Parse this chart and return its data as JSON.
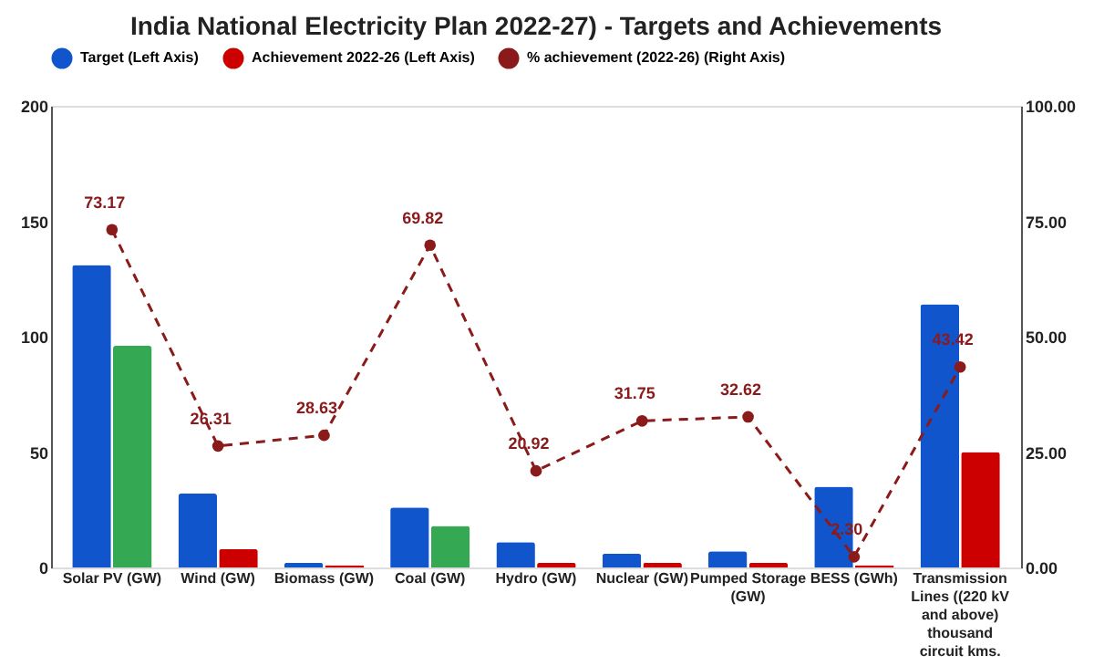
{
  "chart_data": {
    "type": "bar",
    "title": "India National Electricity Plan 2022-27) - Targets and Achievements",
    "categories": [
      "Solar PV (GW)",
      "Wind (GW)",
      "Biomass (GW)",
      "Coal (GW)",
      "Hydro (GW)",
      "Nuclear (GW)",
      "Pumped Storage (GW)",
      "BESS (GWh)",
      "Transmission Lines ((220 kV and above) thousand circuit kms."
    ],
    "series": [
      {
        "name": "Target (Left Axis)",
        "color": "#1155cc",
        "values": [
          131,
          32,
          2,
          26,
          11,
          6,
          7,
          35,
          114
        ]
      },
      {
        "name": "Achievement 2022-26 (Left Axis)",
        "color": "#cc0000",
        "colors": [
          "#34a853",
          "#cc0000",
          "#cc0000",
          "#34a853",
          "#cc0000",
          "#cc0000",
          "#cc0000",
          "#cc0000",
          "#cc0000"
        ],
        "values": [
          96,
          8,
          1,
          18,
          2,
          2,
          2,
          1,
          50
        ]
      },
      {
        "name": "% achievement (2022-26) (Right Axis)",
        "type": "line",
        "axis": "y2",
        "color": "#8b1a1a",
        "marker": "circle",
        "line_style": "dashed",
        "values": [
          73.17,
          26.31,
          28.63,
          69.82,
          20.92,
          31.75,
          32.62,
          2.3,
          43.42
        ],
        "value_labels": [
          "73.17",
          "26.31",
          "28.63",
          "69.82",
          "20.92",
          "31.75",
          "32.62",
          "2.30",
          "43.42"
        ]
      }
    ],
    "ylim": [
      0,
      200
    ],
    "yticks": [
      0,
      50,
      100,
      150,
      200
    ],
    "y2lim": [
      0,
      100
    ],
    "y2ticks": [
      {
        "value": 0,
        "label": "0.00"
      },
      {
        "value": 25,
        "label": "25.00"
      },
      {
        "value": 50,
        "label": "50.00"
      },
      {
        "value": 75,
        "label": "75.00"
      },
      {
        "value": 100,
        "label": "100.00"
      }
    ],
    "grid": false,
    "legend": "top"
  }
}
